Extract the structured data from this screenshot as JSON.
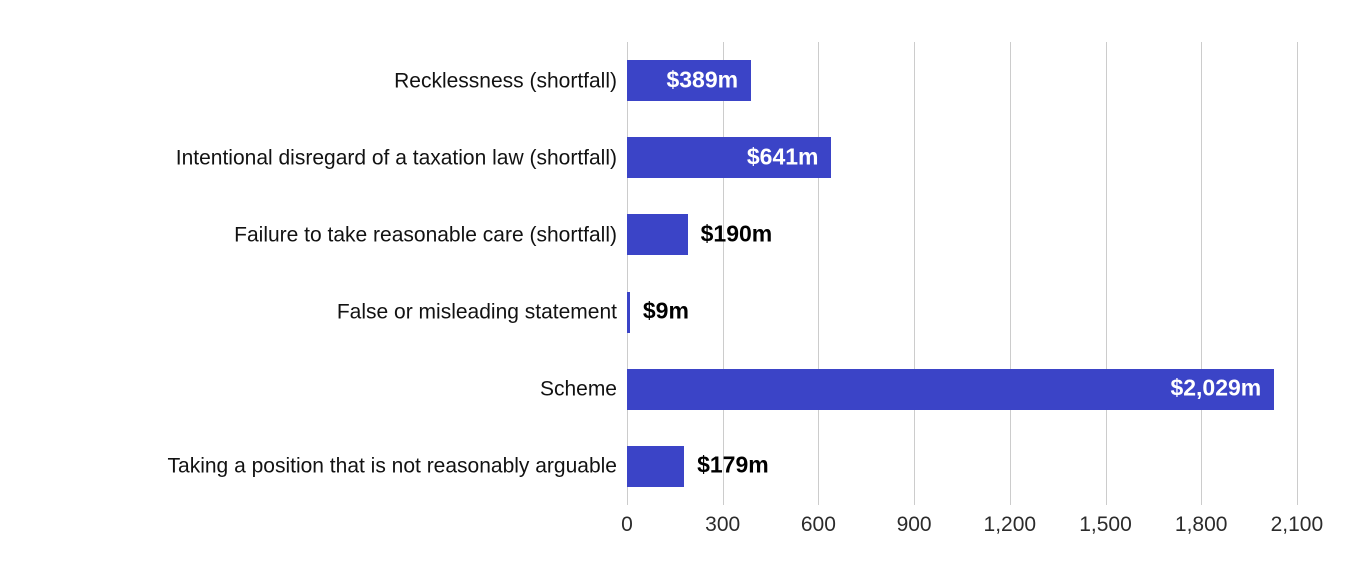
{
  "chart_data": {
    "type": "bar",
    "orientation": "horizontal",
    "title": "",
    "xlabel": "",
    "ylabel": "",
    "categories": [
      "Recklessness (shortfall)",
      "Intentional disregard of a taxation law (shortfall)",
      "Failure to take reasonable care (shortfall)",
      "False or misleading statement",
      "Scheme",
      "Taking a position that is not reasonably arguable"
    ],
    "values": [
      389,
      641,
      190,
      9,
      2029,
      179
    ],
    "value_labels": [
      "$389m",
      "$641m",
      "$190m",
      "$9m",
      "$2,029m",
      "$179m"
    ],
    "value_label_inside": [
      true,
      true,
      false,
      false,
      true,
      false
    ],
    "x_ticks": [
      0,
      300,
      600,
      900,
      1200,
      1500,
      1800,
      2100
    ],
    "x_tick_labels": [
      "0",
      "300",
      "600",
      "900",
      "1,200",
      "1,500",
      "1,800",
      "2,100"
    ],
    "xlim": [
      0,
      2100
    ],
    "grid": true,
    "legend": false,
    "colors": {
      "bar": "#3b44c7",
      "gridline": "#cccccc",
      "value_label_inside": "#ffffff",
      "value_label_outside": "#000000",
      "category_label": "#121212",
      "tick_label": "#2b2b2b",
      "background": "#ffffff"
    }
  }
}
